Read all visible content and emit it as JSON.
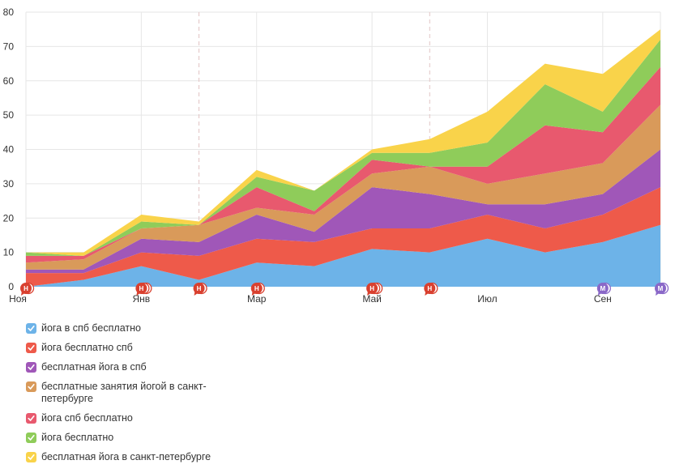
{
  "chart_data": {
    "type": "area",
    "stacked": true,
    "x": [
      "2012-11",
      "2012-12",
      "2013-01",
      "2013-02",
      "2013-03",
      "2013-04",
      "2013-05",
      "2013-06",
      "2013-07",
      "2013-08",
      "2013-09",
      "2013-10"
    ],
    "x_tick_labels": [
      {
        "at": "2012-11",
        "label": "Ноя"
      },
      {
        "at": "2013-01",
        "label": "Янв"
      },
      {
        "at": "2013-03",
        "label": "Мар"
      },
      {
        "at": "2013-05",
        "label": "Май"
      },
      {
        "at": "2013-07",
        "label": "Июл"
      },
      {
        "at": "2013-09",
        "label": "Сен"
      }
    ],
    "y_ticks": [
      0,
      10,
      20,
      30,
      40,
      50,
      60,
      70,
      80
    ],
    "ylim": [
      0,
      80
    ],
    "grid": true,
    "legend_position": "bottom-left",
    "series": [
      {
        "name": "йога в спб бесплатно",
        "color": "#6db3e8",
        "values": [
          0,
          2,
          6,
          2,
          7,
          6,
          11,
          10,
          14,
          10,
          13,
          18
        ]
      },
      {
        "name": "йога бесплатно спб",
        "color": "#ee5a4a",
        "values": [
          4,
          2,
          4,
          7,
          7,
          7,
          6,
          7,
          7,
          7,
          8,
          11
        ]
      },
      {
        "name": "бесплатная йога в спб",
        "color": "#a057b8",
        "values": [
          1,
          1,
          4,
          4,
          7,
          3,
          12,
          10,
          3,
          7,
          6,
          11
        ]
      },
      {
        "name": "бесплатные занятия йогой в санкт-петербурге",
        "color": "#d99a5a",
        "values": [
          2,
          3,
          3,
          5,
          2,
          5,
          4,
          8,
          6,
          9,
          9,
          13
        ]
      },
      {
        "name": "йога спб бесплатно",
        "color": "#e8596e",
        "values": [
          2,
          1,
          0,
          0,
          6,
          1,
          4,
          0,
          5,
          14,
          9,
          11
        ]
      },
      {
        "name": "йога бесплатно",
        "color": "#8fcc5a",
        "values": [
          1,
          0,
          2,
          0,
          3,
          6,
          2,
          4,
          7,
          12,
          6,
          8
        ]
      },
      {
        "name": "бесплатная йога в санкт-петербурге",
        "color": "#f9d34a",
        "values": [
          0,
          1,
          2,
          1,
          2,
          0,
          1,
          4,
          9,
          6,
          11,
          3
        ]
      }
    ],
    "event_markers": [
      {
        "at": "2012-11",
        "letters": [
          "Н"
        ],
        "color": "#d9402f"
      },
      {
        "at": "2013-01",
        "letters": [
          "Н",
          "Н"
        ],
        "color": "#d9402f"
      },
      {
        "at": "2013-02",
        "letters": [
          "Н"
        ],
        "color": "#d9402f"
      },
      {
        "at": "2013-03",
        "letters": [
          "Н"
        ],
        "color": "#d9402f"
      },
      {
        "at": "2013-05",
        "letters": [
          "Н",
          "Н"
        ],
        "color": "#d9402f"
      },
      {
        "at": "2013-06",
        "letters": [
          "Н"
        ],
        "color": "#d9402f"
      },
      {
        "at": "2013-09",
        "letters": [
          "М"
        ],
        "color": "#8a68c8"
      },
      {
        "at": "2013-10",
        "letters": [
          "М"
        ],
        "color": "#8a68c8"
      }
    ],
    "dashed_gridlines_at": [
      "2013-02",
      "2013-06"
    ]
  }
}
